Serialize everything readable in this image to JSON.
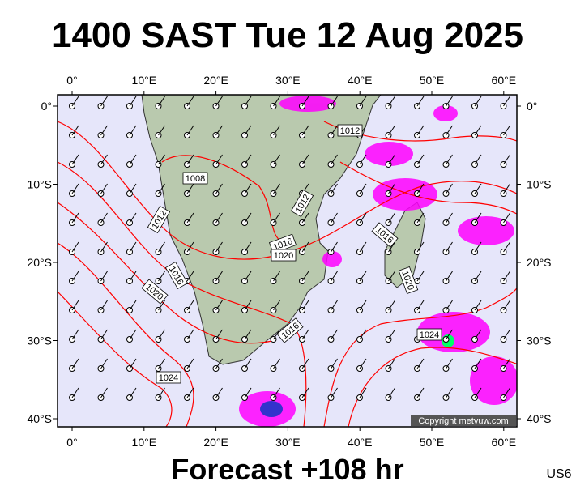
{
  "header": {
    "title": "1400 SAST Tue 12 Aug 2025"
  },
  "map": {
    "lon_labels": [
      "0°",
      "10°E",
      "20°E",
      "30°E",
      "40°E",
      "50°E",
      "60°E"
    ],
    "lat_labels": [
      "0°",
      "10°S",
      "20°S",
      "30°S",
      "40°S"
    ],
    "isobar_labels": [
      "1012",
      "1008",
      "1012",
      "1012",
      "1016",
      "1016",
      "1020",
      "1016",
      "1020",
      "1020",
      "1016",
      "1024",
      "1024"
    ],
    "copyright": "Copyright metvuw.com"
  },
  "footer": {
    "forecast": "Forecast +108 hr",
    "code": "US6"
  }
}
